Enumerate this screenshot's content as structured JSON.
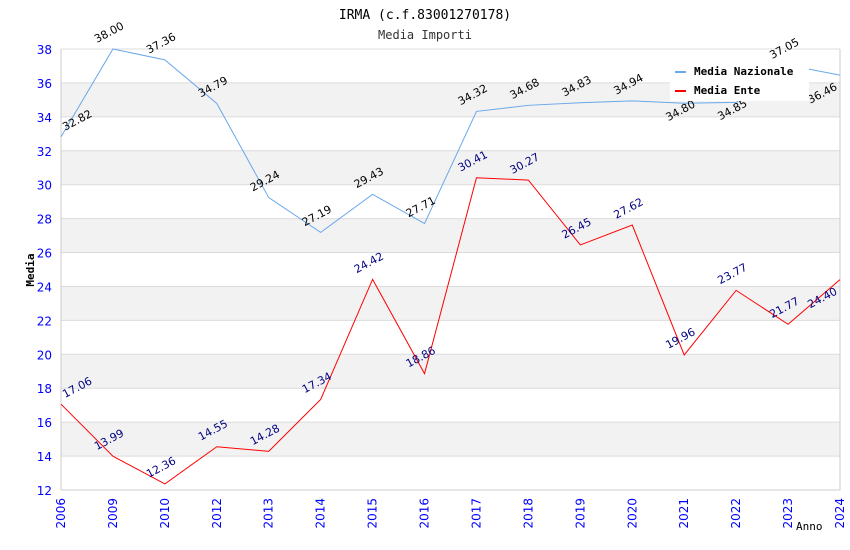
{
  "chart_data": {
    "type": "line",
    "title": "IRMA (c.f.83001270178)",
    "subtitle": "Media Importi",
    "xlabel": "Anno",
    "ylabel": "Media",
    "ylim": [
      12,
      38
    ],
    "yticks": [
      "12",
      "14",
      "16",
      "18",
      "20",
      "22",
      "24",
      "26",
      "28",
      "30",
      "32",
      "34",
      "36",
      "38"
    ],
    "categories": [
      "2006",
      "2009",
      "2010",
      "2012",
      "2013",
      "2014",
      "2015",
      "2016",
      "2017",
      "2018",
      "2019",
      "2020",
      "2021",
      "2022",
      "2023",
      "2024"
    ],
    "grid": true,
    "legend_position": "top-right",
    "series": [
      {
        "name": "Media Nazionale",
        "color": "#6aa8ea",
        "label_color": "#000000",
        "values": [
          32.82,
          38.0,
          37.36,
          34.79,
          29.24,
          27.19,
          29.43,
          27.71,
          34.32,
          34.68,
          34.83,
          34.94,
          34.8,
          34.85,
          37.05,
          36.46
        ]
      },
      {
        "name": "Media Ente",
        "color": "#ff0000",
        "label_color": "#000080",
        "values": [
          17.06,
          13.99,
          12.36,
          14.55,
          14.28,
          17.34,
          24.42,
          18.86,
          30.41,
          30.27,
          26.45,
          27.62,
          19.96,
          23.77,
          21.77,
          24.4
        ]
      }
    ]
  }
}
